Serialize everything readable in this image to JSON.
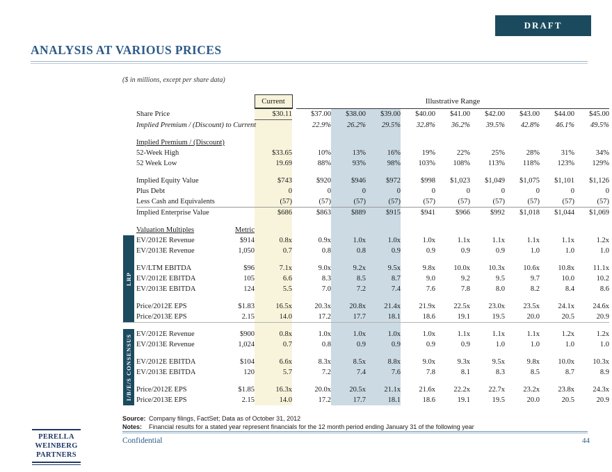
{
  "page": {
    "draft_label": "DRAFT",
    "title": "ANALYSIS AT VARIOUS PRICES",
    "subtitle": "($ in millions, except per share data)",
    "confidential": "Confidential",
    "page_number": "44",
    "logo_lines": [
      "PERELLA",
      "WEINBERG",
      "PARTNERS"
    ]
  },
  "footnotes": {
    "source_label": "Source:",
    "source_text": "Company filings, FactSet; Data as of October 31, 2012",
    "notes_label": "Notes:",
    "notes_text": "Financial results for a stated year represent financials for the 12 month period ending January 31 of the following year"
  },
  "colors": {
    "navy_badge": "#1b4a5f",
    "group_bar_navy": "#1c4a5f",
    "title_blue": "#2d5a87",
    "logo_navy": "#1f3864",
    "current_column_bg": "#f8f4dc",
    "highlight_column_bg": "#cbdae3",
    "rule_light_blue": "#9eb3c6"
  },
  "table": {
    "current_header": "Current",
    "range_header": "Illustrative Range",
    "groups": {
      "lrp": "LRP",
      "ibes": "I/B/E/S CONSENSUS"
    },
    "rows": [
      {
        "type": "data",
        "label": "Share Price",
        "current": "$30.11",
        "current_underline": true,
        "values": [
          "$37.00",
          "$38.00",
          "$39.00",
          "$40.00",
          "$41.00",
          "$42.00",
          "$43.00",
          "$44.00",
          "$45.00"
        ]
      },
      {
        "type": "data",
        "label": "Implied Premium /  (Discount) to Current",
        "italic": true,
        "values": [
          "22.9%",
          "26.2%",
          "29.5%",
          "32.8%",
          "36.2%",
          "39.5%",
          "42.8%",
          "46.1%",
          "49.5%"
        ]
      },
      {
        "type": "spacer"
      },
      {
        "type": "data",
        "label": "Implied Premium / (Discount)",
        "section": true
      },
      {
        "type": "data",
        "label": "52-Week High",
        "current": "$33.65",
        "values": [
          "10%",
          "13%",
          "16%",
          "19%",
          "22%",
          "25%",
          "28%",
          "31%",
          "34%"
        ]
      },
      {
        "type": "data",
        "label": "52 Week Low",
        "current": "19.69",
        "values": [
          "88%",
          "93%",
          "98%",
          "103%",
          "108%",
          "113%",
          "118%",
          "123%",
          "129%"
        ]
      },
      {
        "type": "spacer"
      },
      {
        "type": "data",
        "label": "Implied Equity Value",
        "bold": true,
        "current": "$743",
        "values": [
          "$920",
          "$946",
          "$972",
          "$998",
          "$1,023",
          "$1,049",
          "$1,075",
          "$1,101",
          "$1,126"
        ]
      },
      {
        "type": "data",
        "label": "Plus Debt",
        "current": "0",
        "values": [
          "0",
          "0",
          "0",
          "0",
          "0",
          "0",
          "0",
          "0",
          "0"
        ]
      },
      {
        "type": "data",
        "label": "Less Cash and Equivalents",
        "current": "(57)",
        "row_underline": true,
        "values": [
          "(57)",
          "(57)",
          "(57)",
          "(57)",
          "(57)",
          "(57)",
          "(57)",
          "(57)",
          "(57)"
        ]
      },
      {
        "type": "data",
        "label": "Implied Enterprise Value",
        "bold": true,
        "current": "$686",
        "values": [
          "$863",
          "$889",
          "$915",
          "$941",
          "$966",
          "$992",
          "$1,018",
          "$1,044",
          "$1,069"
        ]
      },
      {
        "type": "spacer"
      },
      {
        "type": "data",
        "label": "Valuation Multiples",
        "section": true,
        "metric": "Metric",
        "metric_header": true
      },
      {
        "type": "data",
        "label": "EV/2012E Revenue",
        "metric": "$914",
        "current": "0.8x",
        "values": [
          "0.9x",
          "1.0x",
          "1.0x",
          "1.0x",
          "1.1x",
          "1.1x",
          "1.1x",
          "1.1x",
          "1.2x"
        ],
        "vbar": {
          "key": "lrp",
          "span": 9
        }
      },
      {
        "type": "data",
        "label": "EV/2013E Revenue",
        "metric": "1,050",
        "current": "0.7",
        "values": [
          "0.8",
          "0.8",
          "0.9",
          "0.9",
          "0.9",
          "0.9",
          "1.0",
          "1.0",
          "1.0"
        ]
      },
      {
        "type": "spacer"
      },
      {
        "type": "data",
        "label": "EV/LTM EBITDA",
        "metric": "$96",
        "current": "7.1x",
        "values": [
          "9.0x",
          "9.2x",
          "9.5x",
          "9.8x",
          "10.0x",
          "10.3x",
          "10.6x",
          "10.8x",
          "11.1x"
        ]
      },
      {
        "type": "data",
        "label": "EV/2012E EBITDA",
        "metric": "105",
        "current": "6.6",
        "values": [
          "8.3",
          "8.5",
          "8.7",
          "9.0",
          "9.2",
          "9.5",
          "9.7",
          "10.0",
          "10.2"
        ]
      },
      {
        "type": "data",
        "label": "EV/2013E EBITDA",
        "metric": "124",
        "current": "5.5",
        "values": [
          "7.0",
          "7.2",
          "7.4",
          "7.6",
          "7.8",
          "8.0",
          "8.2",
          "8.4",
          "8.6"
        ]
      },
      {
        "type": "spacer"
      },
      {
        "type": "data",
        "label": "Price/2012E EPS",
        "metric": "$1.83",
        "current": "16.5x",
        "values": [
          "20.3x",
          "20.8x",
          "21.4x",
          "21.9x",
          "22.5x",
          "23.0x",
          "23.5x",
          "24.1x",
          "24.6x"
        ]
      },
      {
        "type": "data",
        "label": "Price/2013E EPS",
        "metric": "2.15",
        "current": "14.0",
        "values": [
          "17.2",
          "17.7",
          "18.1",
          "18.6",
          "19.1",
          "19.5",
          "20.0",
          "20.5",
          "20.9"
        ]
      },
      {
        "type": "rule"
      },
      {
        "type": "data",
        "label": "EV/2012E Revenue",
        "metric": "$900",
        "current": "0.8x",
        "values": [
          "1.0x",
          "1.0x",
          "1.0x",
          "1.0x",
          "1.1x",
          "1.1x",
          "1.1x",
          "1.2x",
          "1.2x"
        ],
        "vbar": {
          "key": "ibes",
          "span": 8
        }
      },
      {
        "type": "data",
        "label": "EV/2013E Revenue",
        "metric": "1,024",
        "current": "0.7",
        "values": [
          "0.8",
          "0.9",
          "0.9",
          "0.9",
          "0.9",
          "1.0",
          "1.0",
          "1.0",
          "1.0"
        ]
      },
      {
        "type": "spacer"
      },
      {
        "type": "data",
        "label": "EV/2012E EBITDA",
        "metric": "$104",
        "current": "6.6x",
        "values": [
          "8.3x",
          "8.5x",
          "8.8x",
          "9.0x",
          "9.3x",
          "9.5x",
          "9.8x",
          "10.0x",
          "10.3x"
        ]
      },
      {
        "type": "data",
        "label": "EV/2013E EBITDA",
        "metric": "120",
        "current": "5.7",
        "values": [
          "7.2",
          "7.4",
          "7.6",
          "7.8",
          "8.1",
          "8.3",
          "8.5",
          "8.7",
          "8.9"
        ]
      },
      {
        "type": "spacer"
      },
      {
        "type": "data",
        "label": "Price/2012E EPS",
        "metric": "$1.85",
        "current": "16.3x",
        "values": [
          "20.0x",
          "20.5x",
          "21.1x",
          "21.6x",
          "22.2x",
          "22.7x",
          "23.2x",
          "23.8x",
          "24.3x"
        ]
      },
      {
        "type": "data",
        "label": "Price/2013E EPS",
        "metric": "2.15",
        "current": "14.0",
        "values": [
          "17.2",
          "17.7",
          "18.1",
          "18.6",
          "19.1",
          "19.5",
          "20.0",
          "20.5",
          "20.9"
        ]
      }
    ]
  }
}
